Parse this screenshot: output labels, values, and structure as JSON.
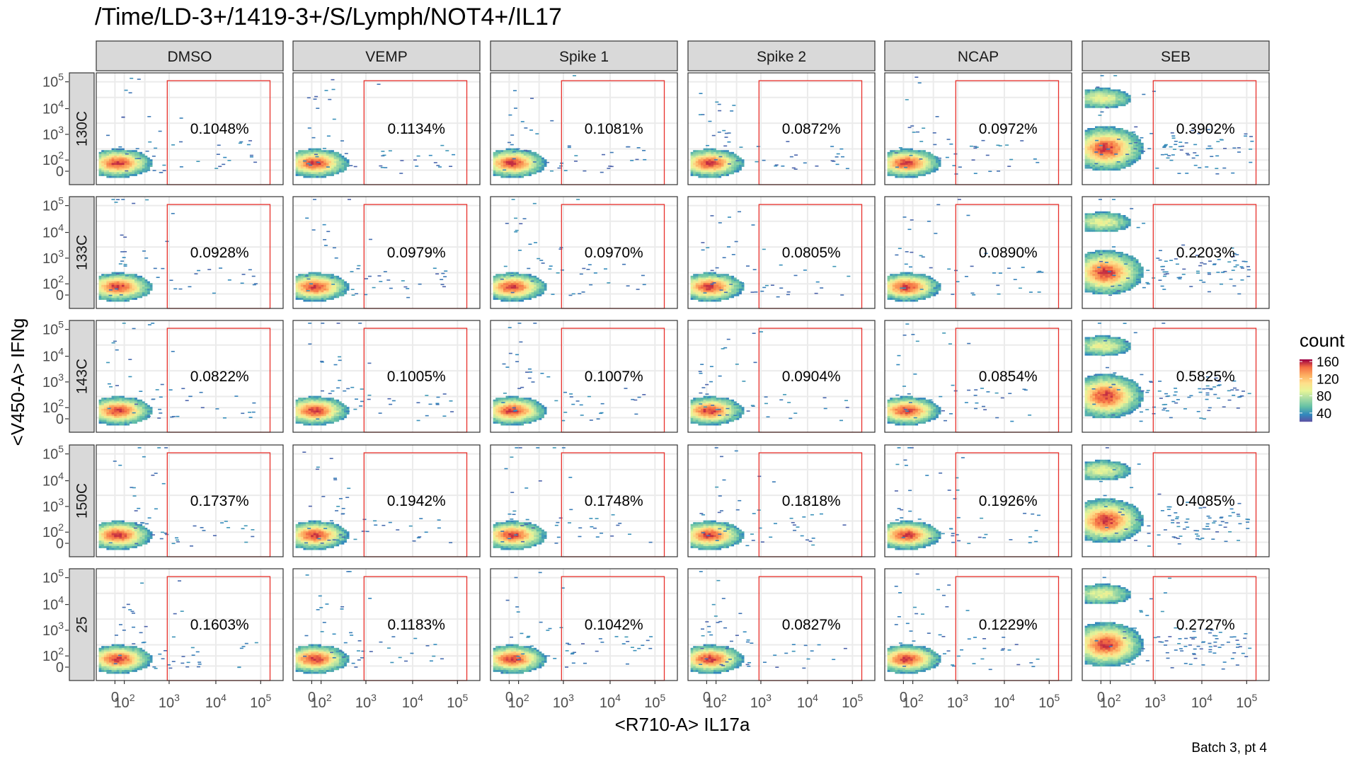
{
  "chart_data": {
    "type": "heatmap",
    "title": "/Time/LD-3+/1419-3+/S/Lymph/NOT4+/IL17",
    "xlabel": "<R710-A> IL17a",
    "ylabel": "<V450-A> IFNg",
    "caption": "Batch 3, pt 4",
    "columns": [
      "DMSO",
      "VEMP",
      "Spike 1",
      "Spike 2",
      "NCAP",
      "SEB"
    ],
    "rows": [
      "130C",
      "133C",
      "143C",
      "150C",
      "25"
    ],
    "x_ticks": [
      {
        "base": "0",
        "exp": ""
      },
      {
        "base": "10",
        "exp": "2"
      },
      {
        "base": "10",
        "exp": "3"
      },
      {
        "base": "10",
        "exp": "4"
      },
      {
        "base": "10",
        "exp": "5"
      }
    ],
    "y_ticks": [
      {
        "base": "10",
        "exp": "5"
      },
      {
        "base": "10",
        "exp": "4"
      },
      {
        "base": "10",
        "exp": "3"
      },
      {
        "base": "10",
        "exp": "2"
      },
      {
        "base": "0",
        "exp": ""
      }
    ],
    "gate_percentages": [
      [
        "0.1048%",
        "0.1134%",
        "0.1081%",
        "0.0872%",
        "0.0972%",
        "0.3902%"
      ],
      [
        "0.0928%",
        "0.0979%",
        "0.0970%",
        "0.0805%",
        "0.0890%",
        "0.2203%"
      ],
      [
        "0.0822%",
        "0.1005%",
        "0.1007%",
        "0.0904%",
        "0.0854%",
        "0.5825%"
      ],
      [
        "0.1737%",
        "0.1942%",
        "0.1748%",
        "0.1818%",
        "0.1926%",
        "0.4085%"
      ],
      [
        "0.1603%",
        "0.1183%",
        "0.1042%",
        "0.0827%",
        "0.1229%",
        "0.2727%"
      ]
    ],
    "legend": {
      "title": "count",
      "ticks": [
        "160",
        "120",
        "80",
        "40"
      ],
      "tick_values": [
        160,
        120,
        80,
        40
      ],
      "range": [
        20,
        165
      ],
      "palette": "Spectral"
    },
    "colors": {
      "gate": "#e8302b",
      "strip_fill": "#d9d9d9",
      "panel_border": "#333333",
      "grid": "#ebebeb"
    }
  }
}
